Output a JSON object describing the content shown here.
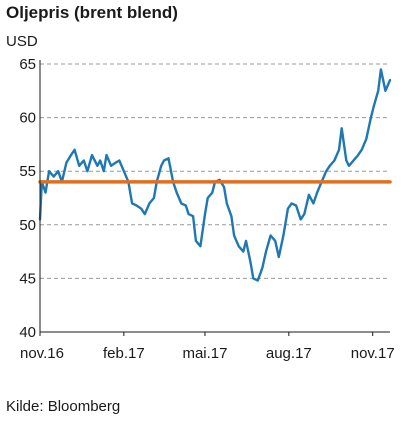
{
  "chart_data": {
    "type": "line",
    "title": "Oljepris (brent blend)",
    "ylabel": "USD",
    "source": "Kilde: Bloomberg",
    "ylim": [
      40,
      65
    ],
    "yticks": [
      40,
      45,
      50,
      55,
      60,
      65
    ],
    "xlim": [
      "2016-11-01",
      "2017-11-20"
    ],
    "xticks": [
      {
        "label": "nov.16",
        "date": "2016-11-01"
      },
      {
        "label": "feb.17",
        "date": "2017-02-01"
      },
      {
        "label": "mai.17",
        "date": "2017-05-01"
      },
      {
        "label": "aug.17",
        "date": "2017-08-01"
      },
      {
        "label": "nov.17",
        "date": "2017-11-01"
      }
    ],
    "grid": "horizontal-dashed",
    "colors": {
      "price_line": "#1f77b4",
      "average_line": "#e07020",
      "grid": "#999999"
    },
    "series": [
      {
        "kind": "line",
        "color": "#1f77b4",
        "x": [
          "2016-11-01",
          "2016-11-03",
          "2016-11-07",
          "2016-11-11",
          "2016-11-16",
          "2016-11-21",
          "2016-11-25",
          "2016-11-30",
          "2016-12-05",
          "2016-12-09",
          "2016-12-14",
          "2016-12-19",
          "2016-12-23",
          "2016-12-28",
          "2017-01-03",
          "2017-01-06",
          "2017-01-10",
          "2017-01-13",
          "2017-01-18",
          "2017-01-23",
          "2017-01-27",
          "2017-02-01",
          "2017-02-06",
          "2017-02-10",
          "2017-02-15",
          "2017-02-20",
          "2017-02-24",
          "2017-03-01",
          "2017-03-06",
          "2017-03-09",
          "2017-03-14",
          "2017-03-17",
          "2017-03-22",
          "2017-03-27",
          "2017-03-31",
          "2017-04-05",
          "2017-04-10",
          "2017-04-13",
          "2017-04-18",
          "2017-04-21",
          "2017-04-26",
          "2017-05-01",
          "2017-05-04",
          "2017-05-09",
          "2017-05-12",
          "2017-05-17",
          "2017-05-22",
          "2017-05-25",
          "2017-05-30",
          "2017-06-02",
          "2017-06-07",
          "2017-06-12",
          "2017-06-15",
          "2017-06-20",
          "2017-06-23",
          "2017-06-28",
          "2017-07-03",
          "2017-07-07",
          "2017-07-12",
          "2017-07-17",
          "2017-07-21",
          "2017-07-26",
          "2017-07-31",
          "2017-08-04",
          "2017-08-09",
          "2017-08-14",
          "2017-08-18",
          "2017-08-23",
          "2017-08-28",
          "2017-09-01",
          "2017-09-06",
          "2017-09-11",
          "2017-09-15",
          "2017-09-20",
          "2017-09-25",
          "2017-09-28",
          "2017-10-03",
          "2017-10-06",
          "2017-10-11",
          "2017-10-16",
          "2017-10-20",
          "2017-10-25",
          "2017-10-30",
          "2017-11-02",
          "2017-11-07",
          "2017-11-10",
          "2017-11-15",
          "2017-11-20"
        ],
        "y": [
          50.5,
          54.0,
          53.0,
          55.0,
          54.5,
          55.0,
          54.0,
          55.8,
          56.5,
          57.0,
          55.5,
          56.0,
          55.0,
          56.5,
          55.5,
          56.0,
          55.0,
          56.5,
          55.5,
          55.8,
          56.0,
          55.0,
          54.0,
          52.0,
          51.8,
          51.5,
          51.0,
          52.0,
          52.5,
          54.0,
          55.5,
          56.0,
          56.2,
          54.0,
          53.0,
          52.0,
          51.8,
          51.0,
          50.8,
          48.5,
          48.0,
          51.0,
          52.5,
          53.0,
          54.0,
          54.2,
          53.5,
          52.0,
          50.8,
          49.0,
          48.0,
          47.5,
          48.5,
          46.5,
          45.0,
          44.8,
          46.0,
          47.5,
          49.0,
          48.5,
          47.0,
          49.0,
          51.5,
          52.0,
          51.8,
          50.5,
          51.0,
          52.8,
          52.0,
          53.0,
          54.0,
          55.0,
          55.5,
          56.0,
          57.0,
          59.0,
          56.0,
          55.5,
          56.0,
          56.5,
          57.0,
          58.0,
          60.0,
          61.0,
          62.5,
          64.5,
          62.5,
          63.5
        ]
      },
      {
        "kind": "average-line",
        "color": "#e07020",
        "x": [
          "2016-11-01",
          "2017-11-20"
        ],
        "y": [
          54.0,
          54.0
        ]
      }
    ]
  }
}
